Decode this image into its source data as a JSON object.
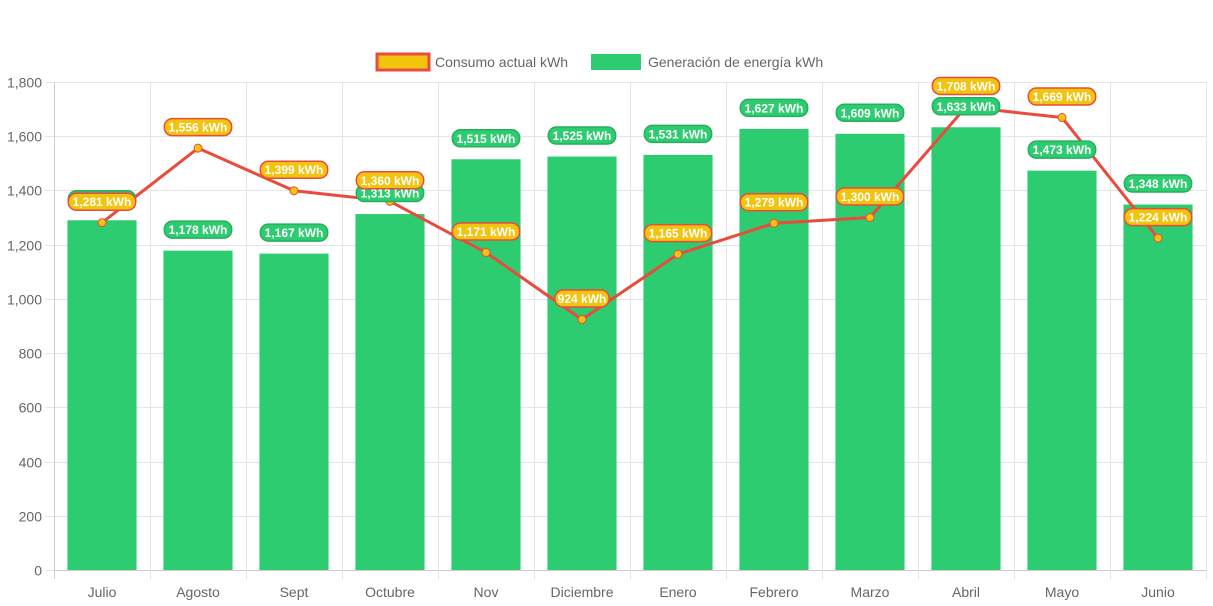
{
  "chart_data": {
    "type": "bar",
    "title": "",
    "xlabel": "",
    "ylabel": "",
    "ylim": [
      0,
      1800
    ],
    "yticks": [
      0,
      200,
      400,
      600,
      800,
      1000,
      1200,
      1400,
      1600,
      1800
    ],
    "ytick_labels": [
      "0",
      "200",
      "400",
      "600",
      "800",
      "1,000",
      "1,200",
      "1,400",
      "1,600",
      "1,800"
    ],
    "grid": true,
    "legend_position": "top-center",
    "categories": [
      "Julio",
      "Agosto",
      "Sept",
      "Octubre",
      "Nov",
      "Diciembre",
      "Enero",
      "Febrero",
      "Marzo",
      "Abril",
      "Mayo",
      "Junio"
    ],
    "series": [
      {
        "name": "Consumo actual kWh",
        "type": "line",
        "color": "#e74c3c",
        "point_color": "#f1c40f",
        "label_fill": "#f1c40f",
        "label_border": "#e74c3c",
        "values": [
          1281,
          1556,
          1399,
          1360,
          1171,
          924,
          1165,
          1279,
          1300,
          1708,
          1669,
          1224
        ],
        "labels": [
          "1,281 kWh",
          "1,556 kWh",
          "1,399 kWh",
          "1,360 kWh",
          "1,171 kWh",
          "924 kWh",
          "1,165 kWh",
          "1,279 kWh",
          "1,300 kWh",
          "1,708 kWh",
          "1,669 kWh",
          "1,224 kWh"
        ]
      },
      {
        "name": "Generación de energía kWh",
        "type": "bar",
        "color": "#2ecc71",
        "label_fill": "#2ecc71",
        "label_border": "#27ae60",
        "values": [
          1290,
          1178,
          1167,
          1313,
          1515,
          1525,
          1531,
          1627,
          1609,
          1633,
          1473,
          1348
        ],
        "labels": [
          "1,290 kWh",
          "1,178 kWh",
          "1,167 kWh",
          "1,313 kWh",
          "1,515 kWh",
          "1,525 kWh",
          "1,531 kWh",
          "1,627 kWh",
          "1,609 kWh",
          "1,633 kWh",
          "1,473 kWh",
          "1,348 kWh"
        ]
      }
    ]
  }
}
